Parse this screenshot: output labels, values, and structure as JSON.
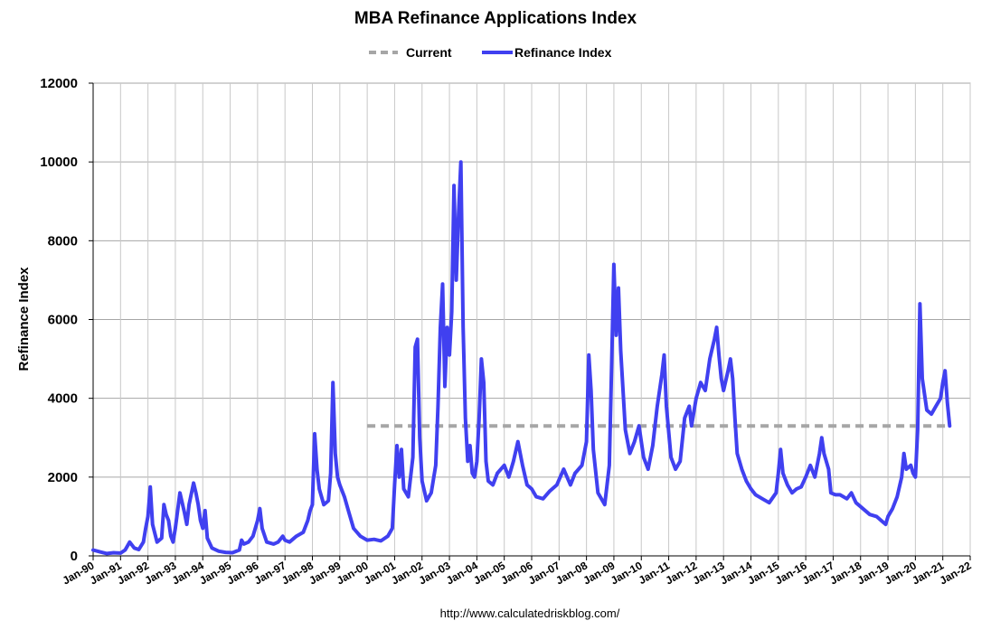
{
  "chart_data": {
    "type": "line",
    "title": "MBA Refinance Applications Index",
    "ylabel": "Refinance Index",
    "xlabel": "",
    "ylim": [
      0,
      12000
    ],
    "yticks": [
      0,
      2000,
      4000,
      6000,
      8000,
      10000,
      12000
    ],
    "xlim": [
      1990,
      2022
    ],
    "xticks": [
      "Jan-90",
      "Jan-91",
      "Jan-92",
      "Jan-93",
      "Jan-94",
      "Jan-95",
      "Jan-96",
      "Jan-97",
      "Jan-98",
      "Jan-99",
      "Jan-00",
      "Jan-01",
      "Jan-02",
      "Jan-03",
      "Jan-04",
      "Jan-05",
      "Jan-06",
      "Jan-07",
      "Jan-08",
      "Jan-09",
      "Jan-10",
      "Jan-11",
      "Jan-12",
      "Jan-13",
      "Jan-14",
      "Jan-15",
      "Jan-16",
      "Jan-17",
      "Jan-18",
      "Jan-19",
      "Jan-20",
      "Jan-21",
      "Jan-22"
    ],
    "grid": true,
    "legend_position": "top-center",
    "series": [
      {
        "name": "Current",
        "style": "dashed",
        "color": "#a6a6a6",
        "points": [
          [
            "Jan-00",
            3300
          ],
          [
            "Apr-21",
            3300
          ]
        ]
      },
      {
        "name": "Refinance Index",
        "style": "solid",
        "color": "#4040f0",
        "points": [
          [
            "Jan-90",
            150
          ],
          [
            "Apr-90",
            100
          ],
          [
            "Jul-90",
            60
          ],
          [
            "Oct-90",
            80
          ],
          [
            "Jan-91",
            70
          ],
          [
            "Mar-91",
            150
          ],
          [
            "May-91",
            350
          ],
          [
            "Jul-91",
            200
          ],
          [
            "Sep-91",
            160
          ],
          [
            "Nov-91",
            350
          ],
          [
            "Dec-91",
            700
          ],
          [
            "Jan-92",
            1000
          ],
          [
            "Feb-92",
            1750
          ],
          [
            "Mar-92",
            800
          ],
          [
            "May-92",
            350
          ],
          [
            "Jul-92",
            450
          ],
          [
            "Aug-92",
            1300
          ],
          [
            "Sep-92",
            1050
          ],
          [
            "Oct-92",
            900
          ],
          [
            "Nov-92",
            500
          ],
          [
            "Dec-92",
            350
          ],
          [
            "Jan-93",
            700
          ],
          [
            "Mar-93",
            1600
          ],
          [
            "May-93",
            1100
          ],
          [
            "Jun-93",
            800
          ],
          [
            "Jul-93",
            1300
          ],
          [
            "Sep-93",
            1850
          ],
          [
            "Oct-93",
            1600
          ],
          [
            "Nov-93",
            1300
          ],
          [
            "Dec-93",
            900
          ],
          [
            "Jan-94",
            700
          ],
          [
            "Feb-94",
            1150
          ],
          [
            "Mar-94",
            450
          ],
          [
            "May-94",
            200
          ],
          [
            "Aug-94",
            120
          ],
          [
            "Nov-94",
            90
          ],
          [
            "Feb-95",
            80
          ],
          [
            "May-95",
            150
          ],
          [
            "Jun-95",
            400
          ],
          [
            "Jul-95",
            300
          ],
          [
            "Sep-95",
            350
          ],
          [
            "Nov-95",
            500
          ],
          [
            "Jan-96",
            900
          ],
          [
            "Feb-96",
            1200
          ],
          [
            "Mar-96",
            700
          ],
          [
            "May-96",
            350
          ],
          [
            "Aug-96",
            300
          ],
          [
            "Oct-96",
            350
          ],
          [
            "Dec-96",
            500
          ],
          [
            "Jan-97",
            400
          ],
          [
            "Mar-97",
            350
          ],
          [
            "Jun-97",
            500
          ],
          [
            "Sep-97",
            600
          ],
          [
            "Nov-97",
            900
          ],
          [
            "Dec-97",
            1150
          ],
          [
            "Jan-98",
            1300
          ],
          [
            "Feb-98",
            3100
          ],
          [
            "Mar-98",
            2200
          ],
          [
            "Apr-98",
            1700
          ],
          [
            "Jun-98",
            1300
          ],
          [
            "Aug-98",
            1400
          ],
          [
            "Sep-98",
            2100
          ],
          [
            "Oct-98",
            4400
          ],
          [
            "Nov-98",
            2600
          ],
          [
            "Dec-98",
            2000
          ],
          [
            "Jan-99",
            1800
          ],
          [
            "Mar-99",
            1500
          ],
          [
            "May-99",
            1100
          ],
          [
            "Jul-99",
            700
          ],
          [
            "Oct-99",
            500
          ],
          [
            "Jan-00",
            400
          ],
          [
            "Apr-00",
            420
          ],
          [
            "Jul-00",
            380
          ],
          [
            "Oct-00",
            500
          ],
          [
            "Dec-00",
            700
          ],
          [
            "Jan-01",
            1800
          ],
          [
            "Feb-01",
            2800
          ],
          [
            "Mar-01",
            2000
          ],
          [
            "Apr-01",
            2700
          ],
          [
            "May-01",
            1700
          ],
          [
            "Jul-01",
            1500
          ],
          [
            "Sep-01",
            2500
          ],
          [
            "Oct-01",
            5300
          ],
          [
            "Nov-01",
            5500
          ],
          [
            "Dec-01",
            3000
          ],
          [
            "Jan-02",
            1900
          ],
          [
            "Mar-02",
            1400
          ],
          [
            "May-02",
            1600
          ],
          [
            "Jul-02",
            2300
          ],
          [
            "Aug-02",
            3800
          ],
          [
            "Sep-02",
            5800
          ],
          [
            "Oct-02",
            6900
          ],
          [
            "Nov-02",
            4300
          ],
          [
            "Dec-02",
            5800
          ],
          [
            "Jan-03",
            5100
          ],
          [
            "Feb-03",
            6200
          ],
          [
            "Mar-03",
            9400
          ],
          [
            "Apr-03",
            7000
          ],
          [
            "May-03",
            8700
          ],
          [
            "Jun-03",
            10000
          ],
          [
            "Jul-03",
            5800
          ],
          [
            "Aug-03",
            3500
          ],
          [
            "Sep-03",
            2400
          ],
          [
            "Oct-03",
            2800
          ],
          [
            "Nov-03",
            2100
          ],
          [
            "Dec-03",
            2000
          ],
          [
            "Jan-04",
            2400
          ],
          [
            "Feb-04",
            3500
          ],
          [
            "Mar-04",
            5000
          ],
          [
            "Apr-04",
            4400
          ],
          [
            "May-04",
            2400
          ],
          [
            "Jun-04",
            1900
          ],
          [
            "Aug-04",
            1800
          ],
          [
            "Oct-04",
            2100
          ],
          [
            "Jan-05",
            2300
          ],
          [
            "Mar-05",
            2000
          ],
          [
            "May-05",
            2400
          ],
          [
            "Jul-05",
            2900
          ],
          [
            "Sep-05",
            2300
          ],
          [
            "Nov-05",
            1800
          ],
          [
            "Jan-06",
            1700
          ],
          [
            "Mar-06",
            1500
          ],
          [
            "Jun-06",
            1450
          ],
          [
            "Sep-06",
            1650
          ],
          [
            "Dec-06",
            1800
          ],
          [
            "Mar-07",
            2200
          ],
          [
            "Jun-07",
            1800
          ],
          [
            "Aug-07",
            2100
          ],
          [
            "Nov-07",
            2300
          ],
          [
            "Jan-08",
            2900
          ],
          [
            "Feb-08",
            5100
          ],
          [
            "Mar-08",
            4200
          ],
          [
            "Apr-08",
            2700
          ],
          [
            "Jun-08",
            1600
          ],
          [
            "Sep-08",
            1300
          ],
          [
            "Nov-08",
            2300
          ],
          [
            "Dec-08",
            4800
          ],
          [
            "Jan-09",
            7400
          ],
          [
            "Feb-09",
            5600
          ],
          [
            "Mar-09",
            6800
          ],
          [
            "Apr-09",
            5200
          ],
          [
            "Jun-09",
            3200
          ],
          [
            "Aug-09",
            2600
          ],
          [
            "Oct-09",
            2900
          ],
          [
            "Dec-09",
            3300
          ],
          [
            "Feb-10",
            2500
          ],
          [
            "Apr-10",
            2200
          ],
          [
            "Jun-10",
            2800
          ],
          [
            "Aug-10",
            3800
          ],
          [
            "Oct-10",
            4600
          ],
          [
            "Nov-10",
            5100
          ],
          [
            "Dec-10",
            3800
          ],
          [
            "Feb-11",
            2500
          ],
          [
            "Apr-11",
            2200
          ],
          [
            "Jun-11",
            2400
          ],
          [
            "Aug-11",
            3500
          ],
          [
            "Oct-11",
            3800
          ],
          [
            "Nov-11",
            3300
          ],
          [
            "Jan-12",
            4000
          ],
          [
            "Mar-12",
            4400
          ],
          [
            "May-12",
            4200
          ],
          [
            "Jul-12",
            5000
          ],
          [
            "Sep-12",
            5500
          ],
          [
            "Oct-12",
            5800
          ],
          [
            "Nov-12",
            5100
          ],
          [
            "Dec-12",
            4500
          ],
          [
            "Jan-13",
            4200
          ],
          [
            "Mar-13",
            4700
          ],
          [
            "Apr-13",
            5000
          ],
          [
            "May-13",
            4500
          ],
          [
            "Jun-13",
            3500
          ],
          [
            "Jul-13",
            2600
          ],
          [
            "Sep-13",
            2200
          ],
          [
            "Nov-13",
            1900
          ],
          [
            "Jan-14",
            1700
          ],
          [
            "Mar-14",
            1550
          ],
          [
            "Jun-14",
            1450
          ],
          [
            "Sep-14",
            1350
          ],
          [
            "Dec-14",
            1600
          ],
          [
            "Jan-15",
            2100
          ],
          [
            "Feb-15",
            2700
          ],
          [
            "Mar-15",
            2100
          ],
          [
            "May-15",
            1800
          ],
          [
            "Jul-15",
            1600
          ],
          [
            "Sep-15",
            1700
          ],
          [
            "Nov-15",
            1750
          ],
          [
            "Jan-16",
            2000
          ],
          [
            "Mar-16",
            2300
          ],
          [
            "May-16",
            2000
          ],
          [
            "Jul-16",
            2600
          ],
          [
            "Aug-16",
            3000
          ],
          [
            "Sep-16",
            2600
          ],
          [
            "Nov-16",
            2200
          ],
          [
            "Dec-16",
            1600
          ],
          [
            "Feb-17",
            1550
          ],
          [
            "Apr-17",
            1550
          ],
          [
            "Jul-17",
            1450
          ],
          [
            "Sep-17",
            1600
          ],
          [
            "Nov-17",
            1350
          ],
          [
            "Feb-18",
            1200
          ],
          [
            "May-18",
            1050
          ],
          [
            "Aug-18",
            1000
          ],
          [
            "Nov-18",
            850
          ],
          [
            "Dec-18",
            800
          ],
          [
            "Jan-19",
            1000
          ],
          [
            "Mar-19",
            1200
          ],
          [
            "May-19",
            1500
          ],
          [
            "Jul-19",
            2000
          ],
          [
            "Aug-19",
            2600
          ],
          [
            "Sep-19",
            2200
          ],
          [
            "Nov-19",
            2300
          ],
          [
            "Dec-19",
            2100
          ],
          [
            "Jan-20",
            2000
          ],
          [
            "Feb-20",
            3200
          ],
          [
            "Mar-20",
            6400
          ],
          [
            "Apr-20",
            4500
          ],
          [
            "Jun-20",
            3700
          ],
          [
            "Aug-20",
            3600
          ],
          [
            "Oct-20",
            3800
          ],
          [
            "Dec-20",
            4000
          ],
          [
            "Jan-21",
            4400
          ],
          [
            "Feb-21",
            4700
          ],
          [
            "Mar-21",
            3900
          ],
          [
            "Apr-21",
            3300
          ]
        ]
      }
    ]
  },
  "footer": {
    "url": "http://www.calculatedriskblog.com/"
  }
}
